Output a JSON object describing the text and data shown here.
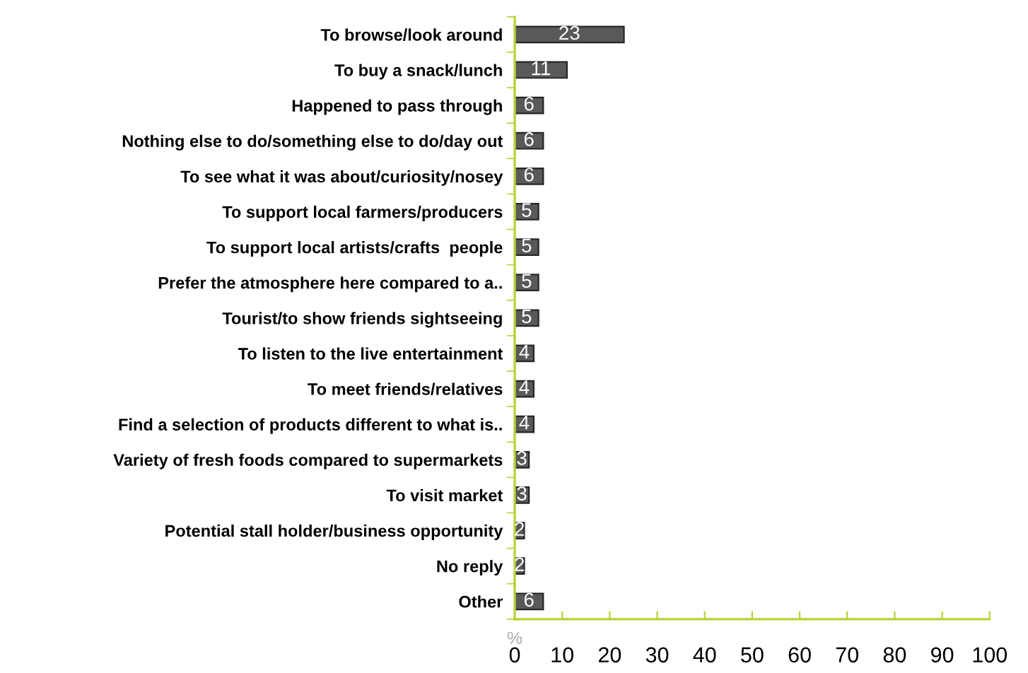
{
  "chart_data": {
    "type": "bar",
    "orientation": "horizontal",
    "xlabel": "%",
    "categories": [
      "To browse/look around",
      "To buy a snack/lunch",
      "Happened to pass through",
      "Nothing else to do/something else to do/day out",
      "To see what it was about/curiosity/nosey",
      "To support local farmers/producers",
      "To support local artists/crafts  people",
      "Prefer the atmosphere here compared to a..",
      "Tourist/to show friends sightseeing",
      "To listen to the live entertainment",
      "To meet friends/relatives",
      "Find a selection of products different to what is..",
      "Variety of fresh foods compared to supermarkets",
      "To visit market",
      "Potential stall holder/business opportunity",
      "No reply",
      "Other"
    ],
    "values": [
      23,
      11,
      6,
      6,
      6,
      5,
      5,
      5,
      5,
      4,
      4,
      4,
      3,
      3,
      2,
      2,
      6
    ],
    "color": "#595959",
    "data_labels": true,
    "grid": false,
    "legend": false,
    "xlim": [
      0,
      100
    ],
    "xticks": [
      0,
      10,
      20,
      30,
      40,
      50,
      60,
      70,
      80,
      90,
      100
    ]
  }
}
